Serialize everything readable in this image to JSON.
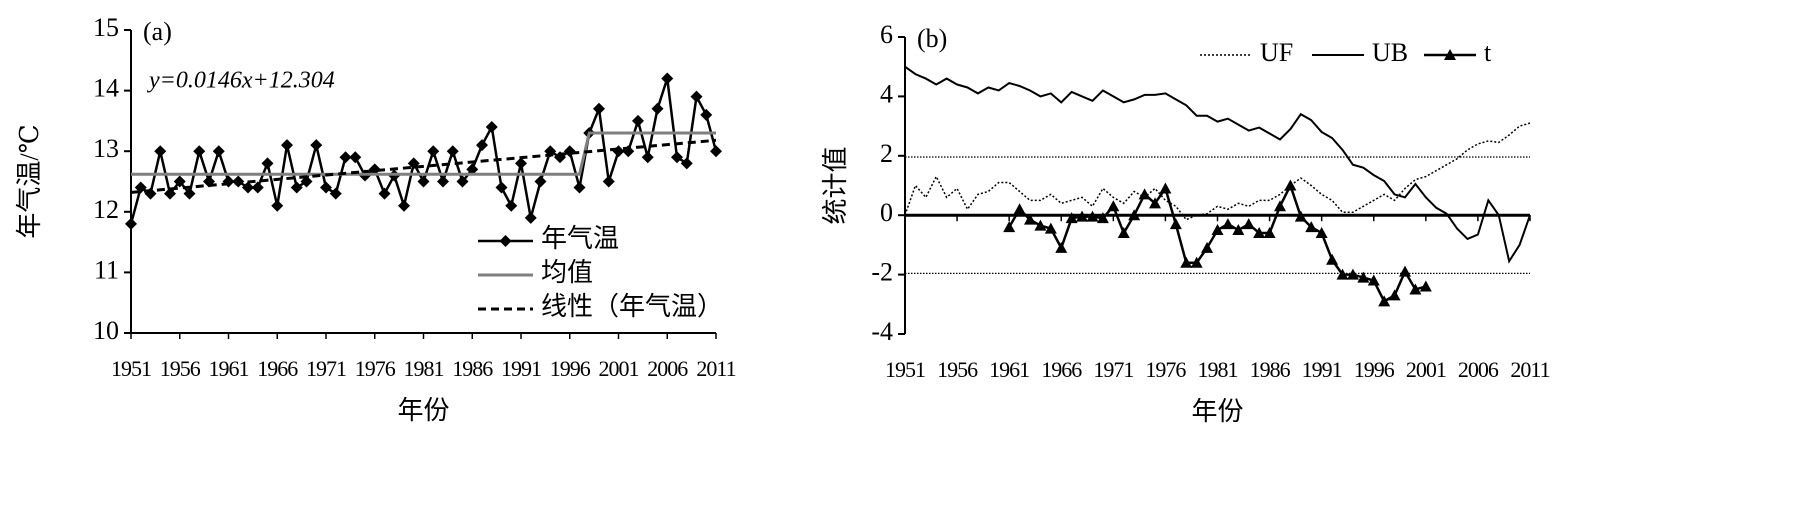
{
  "chart_data": [
    {
      "type": "line",
      "label": "(a)",
      "ylabel": "年气温/℃",
      "xlabel": "年份",
      "annotation": "y=0.0146x+12.304",
      "x": [
        1951,
        1952,
        1953,
        1954,
        1955,
        1956,
        1957,
        1958,
        1959,
        1960,
        1961,
        1962,
        1963,
        1964,
        1965,
        1966,
        1967,
        1968,
        1969,
        1970,
        1971,
        1972,
        1973,
        1974,
        1975,
        1976,
        1977,
        1978,
        1979,
        1980,
        1981,
        1982,
        1983,
        1984,
        1985,
        1986,
        1987,
        1988,
        1989,
        1990,
        1991,
        1992,
        1993,
        1994,
        1995,
        1996,
        1997,
        1998,
        1999,
        2000,
        2001,
        2002,
        2003,
        2004,
        2005,
        2006,
        2007,
        2008,
        2009,
        2010,
        2011
      ],
      "xlim": [
        1951,
        2011
      ],
      "xticks": [
        1951,
        1956,
        1961,
        1966,
        1971,
        1976,
        1981,
        1986,
        1991,
        1996,
        2001,
        2006,
        2011
      ],
      "ylim": [
        10,
        15
      ],
      "yticks": [
        10,
        11,
        12,
        13,
        14,
        15
      ],
      "legend": "lower right",
      "series": [
        {
          "name": "年气温",
          "color": "#000000",
          "dash": "solid",
          "marker": "diamond",
          "width": 2.5,
          "values": [
            11.8,
            12.4,
            12.3,
            13.0,
            12.3,
            12.5,
            12.3,
            13.0,
            12.5,
            13.0,
            12.5,
            12.5,
            12.4,
            12.4,
            12.8,
            12.1,
            13.1,
            12.4,
            12.5,
            13.1,
            12.4,
            12.3,
            12.9,
            12.9,
            12.6,
            12.7,
            12.3,
            12.6,
            12.1,
            12.8,
            12.5,
            13.0,
            12.5,
            13.0,
            12.5,
            12.7,
            13.1,
            13.4,
            12.4,
            12.1,
            12.8,
            11.9,
            12.5,
            13.0,
            12.9,
            13.0,
            12.4,
            13.3,
            13.7,
            12.5,
            13.0,
            13.0,
            13.5,
            12.9,
            13.7,
            14.2,
            12.9,
            12.8,
            13.9,
            13.6,
            13.0
          ]
        },
        {
          "name": "均值",
          "color": "#7f7f7f",
          "dash": "solid",
          "marker": null,
          "width": 3,
          "x": [
            1951,
            1997,
            1998,
            2011
          ],
          "values": [
            12.62,
            12.62,
            13.3,
            13.3
          ]
        },
        {
          "name": "线性（年气温）",
          "color": "#000000",
          "dash": "dashed",
          "marker": null,
          "width": 3,
          "x": [
            1951,
            2011
          ],
          "values": [
            12.32,
            13.18
          ]
        }
      ]
    },
    {
      "type": "line",
      "label": "(b)",
      "ylabel": "统计值",
      "xlabel": "年份",
      "x": [
        1951,
        1952,
        1953,
        1954,
        1955,
        1956,
        1957,
        1958,
        1959,
        1960,
        1961,
        1962,
        1963,
        1964,
        1965,
        1966,
        1967,
        1968,
        1969,
        1970,
        1971,
        1972,
        1973,
        1974,
        1975,
        1976,
        1977,
        1978,
        1979,
        1980,
        1981,
        1982,
        1983,
        1984,
        1985,
        1986,
        1987,
        1988,
        1989,
        1990,
        1991,
        1992,
        1993,
        1994,
        1995,
        1996,
        1997,
        1998,
        1999,
        2000,
        2001,
        2002,
        2003,
        2004,
        2005,
        2006,
        2007,
        2008,
        2009,
        2010,
        2011
      ],
      "xlim": [
        1951,
        2011
      ],
      "xticks": [
        1951,
        1956,
        1961,
        1966,
        1971,
        1976,
        1981,
        1986,
        1991,
        1996,
        2001,
        2006,
        2011
      ],
      "ylim": [
        -4,
        6
      ],
      "yticks": [
        -4,
        -2,
        0,
        2,
        4,
        6
      ],
      "legend": "upper right",
      "reference_lines": [
        1.96,
        -1.96
      ],
      "series": [
        {
          "name": "UF",
          "color": "#000000",
          "dash": "dotted",
          "marker": null,
          "width": 1.5,
          "values": [
            0,
            1.0,
            0.6,
            1.3,
            0.6,
            0.9,
            0.2,
            0.7,
            0.8,
            1.1,
            1.1,
            0.8,
            0.5,
            0.5,
            0.7,
            0.4,
            0.5,
            0.6,
            0.3,
            0.9,
            0.6,
            0.4,
            0.8,
            0.6,
            0.9,
            0.5,
            0.3,
            -0.15,
            0.0,
            0.05,
            0.3,
            0.2,
            0.4,
            0.3,
            0.5,
            0.5,
            0.7,
            1.0,
            1.25,
            1.0,
            0.7,
            0.5,
            0.1,
            0.1,
            0.3,
            0.5,
            0.7,
            0.5,
            0.9,
            1.2,
            1.3,
            1.5,
            1.7,
            1.9,
            2.2,
            2.4,
            2.5,
            2.45,
            2.7,
            3.0,
            3.1
          ]
        },
        {
          "name": "UB",
          "color": "#000000",
          "dash": "solid",
          "marker": null,
          "width": 2,
          "values": [
            5.0,
            4.75,
            4.6,
            4.4,
            4.6,
            4.4,
            4.3,
            4.1,
            4.3,
            4.2,
            4.45,
            4.35,
            4.2,
            4.0,
            4.1,
            3.8,
            4.15,
            4.0,
            3.85,
            4.2,
            4.0,
            3.8,
            3.9,
            4.05,
            4.05,
            4.1,
            3.9,
            3.7,
            3.35,
            3.35,
            3.15,
            3.25,
            3.05,
            2.85,
            2.95,
            2.75,
            2.55,
            2.9,
            3.4,
            3.2,
            2.8,
            2.6,
            2.2,
            1.7,
            1.6,
            1.35,
            1.15,
            0.7,
            0.6,
            1.05,
            0.6,
            0.25,
            0.05,
            -0.45,
            -0.8,
            -0.65,
            0.5,
            0.0,
            -1.55,
            -1.0,
            0.0
          ]
        },
        {
          "name": "t",
          "color": "#000000",
          "dash": "solid",
          "marker": "triangle",
          "width": 2.5,
          "x": [
            1961,
            1962,
            1963,
            1964,
            1965,
            1966,
            1967,
            1968,
            1969,
            1970,
            1971,
            1972,
            1973,
            1974,
            1975,
            1976,
            1977,
            1978,
            1979,
            1980,
            1981,
            1982,
            1983,
            1984,
            1985,
            1986,
            1987,
            1988,
            1989,
            1990,
            1991,
            1992,
            1993,
            1994,
            1995,
            1996,
            1997,
            1998,
            1999,
            2000,
            2001
          ],
          "values": [
            -0.4,
            0.2,
            -0.15,
            -0.35,
            -0.45,
            -1.1,
            -0.1,
            -0.05,
            -0.05,
            -0.1,
            0.3,
            -0.6,
            0.0,
            0.7,
            0.4,
            0.9,
            -0.3,
            -1.6,
            -1.6,
            -1.1,
            -0.5,
            -0.3,
            -0.5,
            -0.3,
            -0.6,
            -0.6,
            0.3,
            1.0,
            -0.05,
            -0.4,
            -0.6,
            -1.5,
            -2.0,
            -2.0,
            -2.1,
            -2.2,
            -2.9,
            -2.7,
            -1.9,
            -2.5,
            -2.4
          ]
        }
      ]
    }
  ]
}
